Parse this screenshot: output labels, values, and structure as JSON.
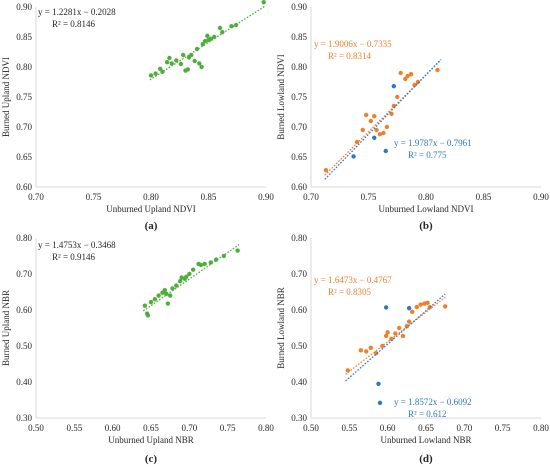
{
  "colors": {
    "green": "#4eae3c",
    "orange": "#f07f2a",
    "blue": "#2f78bf",
    "axis": "#d9d9d9",
    "text": "#262626"
  },
  "chart_data": [
    {
      "type": "scatter",
      "panel_label": "(a)",
      "xlabel": "Unburned Upland NDVI",
      "ylabel": "Burned Upland NDVI",
      "xlim": [
        0.7,
        0.9
      ],
      "ylim": [
        0.6,
        0.9
      ],
      "xticks": [
        "0.70",
        "0.75",
        "0.80",
        "0.85",
        "0.90"
      ],
      "yticks": [
        "0.60",
        "0.65",
        "0.70",
        "0.75",
        "0.80",
        "0.85",
        "0.90"
      ],
      "series": [
        {
          "color": "#4eae3c",
          "equation": "y = 1.2281x − 0.2028",
          "r2": "R² = 0.8146",
          "trend": {
            "slope": 1.2281,
            "intercept": -0.2028,
            "x_range": [
              0.799,
              0.899
            ]
          },
          "points": [
            [
              0.8,
              0.786
            ],
            [
              0.804,
              0.789
            ],
            [
              0.808,
              0.797
            ],
            [
              0.81,
              0.792
            ],
            [
              0.814,
              0.808
            ],
            [
              0.816,
              0.815
            ],
            [
              0.818,
              0.806
            ],
            [
              0.822,
              0.811
            ],
            [
              0.826,
              0.805
            ],
            [
              0.828,
              0.82
            ],
            [
              0.83,
              0.794
            ],
            [
              0.832,
              0.796
            ],
            [
              0.833,
              0.816
            ],
            [
              0.835,
              0.82
            ],
            [
              0.838,
              0.81
            ],
            [
              0.84,
              0.83
            ],
            [
              0.842,
              0.806
            ],
            [
              0.844,
              0.8
            ],
            [
              0.845,
              0.838
            ],
            [
              0.847,
              0.843
            ],
            [
              0.849,
              0.852
            ],
            [
              0.85,
              0.845
            ],
            [
              0.852,
              0.847
            ],
            [
              0.855,
              0.85
            ],
            [
              0.86,
              0.865
            ],
            [
              0.862,
              0.858
            ],
            [
              0.87,
              0.868
            ],
            [
              0.874,
              0.87
            ],
            [
              0.898,
              0.908
            ]
          ]
        }
      ]
    },
    {
      "type": "scatter",
      "panel_label": "(b)",
      "xlabel": "Unburned Lowland NDVI",
      "ylabel": "Burned Lowland NDVI",
      "xlim": [
        0.7,
        0.9
      ],
      "ylim": [
        0.6,
        0.9
      ],
      "xticks": [
        "0.70",
        "0.75",
        "0.80",
        "0.85",
        "0.90"
      ],
      "yticks": [
        "0.60",
        "0.65",
        "0.70",
        "0.75",
        "0.80",
        "0.85",
        "0.90"
      ],
      "series": [
        {
          "color": "#f07f2a",
          "equation": "y = 1.9006x − 0.7335",
          "r2": "R² = 0.8314",
          "trend": {
            "slope": 1.9006,
            "intercept": -0.7335,
            "x_range": [
              0.712,
              0.813
            ]
          },
          "points": [
            [
              0.713,
              0.628
            ],
            [
              0.74,
              0.675
            ],
            [
              0.745,
              0.695
            ],
            [
              0.748,
              0.72
            ],
            [
              0.752,
              0.71
            ],
            [
              0.755,
              0.718
            ],
            [
              0.757,
              0.695
            ],
            [
              0.76,
              0.688
            ],
            [
              0.763,
              0.69
            ],
            [
              0.766,
              0.7
            ],
            [
              0.77,
              0.722
            ],
            [
              0.772,
              0.735
            ],
            [
              0.775,
              0.75
            ],
            [
              0.778,
              0.79
            ],
            [
              0.782,
              0.78
            ],
            [
              0.784,
              0.785
            ],
            [
              0.787,
              0.788
            ],
            [
              0.79,
              0.77
            ],
            [
              0.793,
              0.775
            ],
            [
              0.81,
              0.795
            ]
          ]
        },
        {
          "color": "#2f78bf",
          "equation": "y = 1.9787x − 0.7961",
          "r2": "R² = 0.775",
          "trend": {
            "slope": 1.9787,
            "intercept": -0.7961,
            "x_range": [
              0.712,
              0.813
            ]
          },
          "points": [
            [
              0.737,
              0.651
            ],
            [
              0.755,
              0.682
            ],
            [
              0.765,
              0.66
            ],
            [
              0.772,
              0.768
            ]
          ]
        }
      ]
    },
    {
      "type": "scatter",
      "panel_label": "(c)",
      "xlabel": "Unburned Upland NBR",
      "ylabel": "Burned Upland NBR",
      "xlim": [
        0.5,
        0.8
      ],
      "ylim": [
        0.3,
        0.8
      ],
      "xticks": [
        "0.50",
        "0.55",
        "0.60",
        "0.65",
        "0.70",
        "0.75",
        "0.80"
      ],
      "yticks": [
        "0.30",
        "0.40",
        "0.50",
        "0.60",
        "0.70",
        "0.80"
      ],
      "series": [
        {
          "color": "#4eae3c",
          "equation": "y = 1.4753x − 0.3468",
          "r2": "R² = 0.9146",
          "trend": {
            "slope": 1.4753,
            "intercept": -0.3468,
            "x_range": [
              0.64,
              0.765
            ]
          },
          "points": [
            [
              0.642,
              0.612
            ],
            [
              0.645,
              0.59
            ],
            [
              0.646,
              0.585
            ],
            [
              0.65,
              0.622
            ],
            [
              0.655,
              0.63
            ],
            [
              0.66,
              0.64
            ],
            [
              0.665,
              0.648
            ],
            [
              0.668,
              0.655
            ],
            [
              0.67,
              0.645
            ],
            [
              0.672,
              0.618
            ],
            [
              0.675,
              0.64
            ],
            [
              0.678,
              0.66
            ],
            [
              0.683,
              0.668
            ],
            [
              0.688,
              0.68
            ],
            [
              0.69,
              0.69
            ],
            [
              0.694,
              0.687
            ],
            [
              0.696,
              0.692
            ],
            [
              0.7,
              0.7
            ],
            [
              0.705,
              0.712
            ],
            [
              0.712,
              0.728
            ],
            [
              0.715,
              0.725
            ],
            [
              0.72,
              0.728
            ],
            [
              0.728,
              0.732
            ],
            [
              0.735,
              0.74
            ],
            [
              0.745,
              0.75
            ],
            [
              0.763,
              0.765
            ]
          ]
        }
      ]
    },
    {
      "type": "scatter",
      "panel_label": "(d)",
      "xlabel": "Unburned Lowland NBR",
      "ylabel": "Burned Lowland NBR",
      "xlim": [
        0.5,
        0.8
      ],
      "ylim": [
        0.3,
        0.8
      ],
      "xticks": [
        "0.50",
        "0.55",
        "0.60",
        "0.65",
        "0.70",
        "0.75",
        "0.80"
      ],
      "yticks": [
        "0.30",
        "0.40",
        "0.50",
        "0.60",
        "0.70",
        "0.80"
      ],
      "series": [
        {
          "color": "#f07f2a",
          "equation": "y = 1.6473x − 0.4767",
          "r2": "R² = 0.8305",
          "trend": {
            "slope": 1.6473,
            "intercept": -0.4767,
            "x_range": [
              0.545,
              0.675
            ]
          },
          "points": [
            [
              0.548,
              0.432
            ],
            [
              0.565,
              0.488
            ],
            [
              0.572,
              0.485
            ],
            [
              0.578,
              0.495
            ],
            [
              0.585,
              0.48
            ],
            [
              0.593,
              0.5
            ],
            [
              0.598,
              0.528
            ],
            [
              0.6,
              0.538
            ],
            [
              0.605,
              0.52
            ],
            [
              0.61,
              0.535
            ],
            [
              0.615,
              0.55
            ],
            [
              0.62,
              0.528
            ],
            [
              0.625,
              0.555
            ],
            [
              0.628,
              0.568
            ],
            [
              0.632,
              0.595
            ],
            [
              0.638,
              0.608
            ],
            [
              0.643,
              0.615
            ],
            [
              0.648,
              0.618
            ],
            [
              0.652,
              0.62
            ],
            [
              0.655,
              0.608
            ],
            [
              0.675,
              0.61
            ]
          ]
        },
        {
          "color": "#2f78bf",
          "equation": "y = 1.8572x − 0.6092",
          "r2": "R² = 0.612",
          "trend": {
            "slope": 1.8572,
            "intercept": -0.6092,
            "x_range": [
              0.545,
              0.675
            ]
          },
          "points": [
            [
              0.588,
              0.395
            ],
            [
              0.59,
              0.342
            ],
            [
              0.598,
              0.607
            ],
            [
              0.628,
              0.605
            ]
          ]
        }
      ]
    }
  ]
}
